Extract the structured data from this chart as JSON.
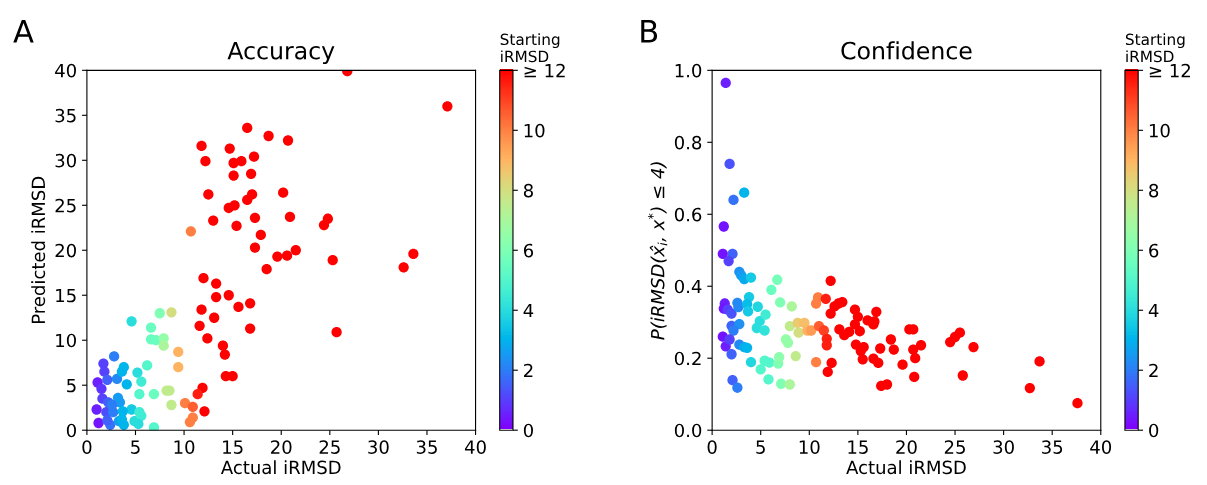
{
  "chart_data": [
    {
      "type": "scatter",
      "title": "Accuracy",
      "xlabel": "Actual iRMSD",
      "ylabel": "Predicted iRMSD",
      "clabel": "Starting\niRMSD",
      "annotations": [
        "A"
      ],
      "marker": "circle",
      "xlim": [
        0,
        40
      ],
      "xticks": [
        0,
        5,
        10,
        15,
        20,
        25,
        30,
        35,
        40
      ],
      "ylim": [
        0,
        40
      ],
      "yticks": [
        0,
        5,
        10,
        15,
        20,
        25,
        30,
        35,
        40
      ],
      "clim": [
        0,
        12
      ],
      "cticks": [
        0,
        2,
        4,
        6,
        8,
        10,
        {
          "value": 12,
          "label": "≥ 12"
        }
      ],
      "x": [
        16.5,
        18.7,
        20.7,
        11.8,
        14.7,
        12.2,
        15.1,
        15.9,
        17.2,
        15.1,
        16.9,
        12.5,
        17.0,
        20.2,
        16.5,
        14.6,
        15.2,
        13.0,
        15.4,
        17.3,
        20.9,
        17.9,
        17.3,
        18.5,
        19.6,
        20.6,
        21.5,
        26.8,
        37.1,
        24.8,
        24.4,
        25.3,
        33.6,
        32.6,
        25.7,
        10.7,
        12.0,
        13.3,
        13.3,
        14.6,
        15.6,
        16.8,
        11.8,
        13.1,
        11.6,
        16.8,
        12.4,
        14.0,
        14.2,
        14.3,
        15.0,
        11.9,
        11.4,
        12.1,
        10.1,
        10.9,
        10.9,
        10.6,
        7.5,
        8.7,
        4.6,
        6.6,
        6.6,
        7.1,
        7.9,
        7.9,
        9.4,
        9.4,
        6.2,
        5.2,
        5.6,
        5.4,
        6.9,
        8.2,
        8.5,
        8.7,
        6.9,
        4.6,
        4.9,
        5.4,
        5.6,
        5.3,
        2.8,
        1.7,
        1.8,
        2.1,
        1.1,
        1.5,
        3.1,
        3.8,
        3.6,
        4.1,
        3.2,
        3.4,
        1.6,
        2.2,
        1.0,
        2.0,
        2.7,
        3.7,
        1.2,
        2.4,
        3.3,
        3.8,
        3.6,
        2.1,
        2.6
      ],
      "values": [
        33.6,
        32.7,
        32.2,
        31.6,
        31.3,
        29.9,
        29.7,
        29.9,
        30.4,
        28.3,
        28.5,
        26.2,
        26.2,
        26.4,
        25.6,
        24.7,
        25.0,
        23.3,
        22.7,
        23.6,
        23.7,
        21.7,
        20.3,
        17.9,
        19.3,
        19.4,
        20.0,
        39.9,
        36.0,
        23.5,
        22.8,
        18.9,
        19.6,
        18.1,
        10.9,
        22.1,
        16.9,
        16.3,
        14.8,
        15.0,
        13.7,
        14.1,
        13.4,
        12.5,
        11.6,
        11.3,
        10.2,
        9.4,
        8.4,
        6.0,
        6.0,
        4.7,
        4.0,
        2.1,
        3.0,
        2.6,
        1.4,
        0.9,
        13.0,
        13.1,
        12.1,
        11.4,
        10.1,
        10.0,
        10.2,
        9.4,
        8.7,
        7.0,
        7.2,
        6.4,
        5.4,
        4.0,
        4.0,
        4.4,
        4.4,
        2.8,
        0.3,
        2.3,
        1.0,
        2.0,
        1.6,
        0.7,
        8.2,
        7.4,
        6.5,
        5.6,
        5.3,
        4.6,
        5.7,
        7.0,
        6.5,
        5.1,
        3.6,
        3.1,
        3.5,
        3.1,
        2.3,
        2.0,
        2.0,
        2.1,
        0.8,
        0.6,
        1.0,
        0.6,
        1.2,
        1.1,
        2.8
      ],
      "cvalues": [
        12,
        12,
        12,
        12,
        12,
        12,
        12,
        12,
        12,
        12,
        12,
        12,
        12,
        12,
        12,
        12,
        12,
        12,
        12,
        12,
        12,
        12,
        12,
        12,
        12,
        12,
        12,
        12,
        12,
        12,
        12,
        12,
        12,
        12,
        12,
        10,
        12,
        12,
        12,
        12,
        12,
        12,
        12,
        12,
        12,
        12,
        12,
        12,
        12,
        12,
        12,
        12,
        11.5,
        12,
        10,
        10.5,
        10,
        10,
        6,
        8,
        4,
        5.5,
        5.5,
        5.5,
        6.5,
        7,
        9,
        9,
        5,
        4,
        4.5,
        5,
        5.5,
        7.5,
        7.5,
        7.5,
        5,
        3.5,
        4,
        4.5,
        4.5,
        4,
        2,
        1,
        1,
        1.5,
        0.5,
        0.8,
        2.2,
        3,
        3,
        3,
        2.5,
        2.5,
        1,
        1.5,
        0.5,
        1.2,
        2,
        3,
        0.3,
        1.8,
        2.5,
        3,
        3,
        1.5,
        2
      ]
    },
    {
      "type": "scatter",
      "title": "Confidence",
      "xlabel": "Actual iRMSD",
      "ylabel": "P(iRMSD(x̂$_{i}$, x$^{*}$) ≤ 4)",
      "clabel": "Starting\niRMSD",
      "annotations": [
        "B"
      ],
      "marker": "circle",
      "xlim": [
        0,
        40
      ],
      "xticks": [
        0,
        5,
        10,
        15,
        20,
        25,
        30,
        35,
        40
      ],
      "ylim": [
        0,
        1
      ],
      "yticks": [
        {
          "value": 0,
          "label": "0.0"
        },
        {
          "value": 0.2,
          "label": "0.2"
        },
        {
          "value": 0.4,
          "label": "0.4"
        },
        {
          "value": 0.6,
          "label": "0.6"
        },
        {
          "value": 0.8,
          "label": "0.8"
        },
        {
          "value": 1,
          "label": "1.0"
        }
      ],
      "clim": [
        0,
        12
      ],
      "cticks": [
        0,
        2,
        4,
        6,
        8,
        10,
        {
          "value": 12,
          "label": "≥ 12"
        }
      ],
      "x": [
        1.4,
        1.8,
        2.2,
        3.3,
        1.2,
        1.1,
        2.1,
        1.7,
        2.8,
        3.0,
        3.3,
        4.0,
        1.3,
        1.2,
        1.6,
        2.0,
        2.6,
        2.7,
        3.8,
        3.6,
        3.7,
        4.7,
        2.0,
        2.8,
        1.1,
        2.2,
        1.4,
        1.8,
        2.0,
        2.8,
        3.3,
        3.6,
        4.0,
        2.1,
        2.6,
        4.9,
        4.6,
        5.4,
        5.5,
        5.0,
        5.4,
        5.9,
        5.8,
        6.1,
        6.7,
        7.0,
        6.8,
        6.9,
        7.1,
        8.0,
        8.2,
        8.0,
        7.6,
        7.8,
        8.6,
        8.8,
        8.9,
        9.5,
        9.8,
        10.2,
        10.7,
        10.9,
        11.0,
        11.5,
        10.7,
        11.8,
        11.8,
        11.9,
        12.3,
        11.7,
        12.2,
        12.2,
        12.6,
        13.0,
        13.4,
        13.1,
        13.6,
        14.1,
        14.7,
        15.0,
        14.7,
        15.2,
        14.8,
        15.3,
        15.6,
        15.5,
        16.0,
        16.6,
        16.9,
        16.7,
        16.6,
        17.1,
        17.3,
        17.4,
        18.0,
        18.4,
        18.7,
        19.6,
        20.3,
        20.7,
        20.7,
        20.9,
        21.5,
        20.8,
        24.5,
        25.0,
        25.5,
        25.8,
        26.9,
        32.7,
        33.7,
        37.6
      ],
      "values": [
        0.965,
        0.74,
        0.64,
        0.66,
        0.566,
        0.49,
        0.49,
        0.47,
        0.44,
        0.43,
        0.42,
        0.424,
        0.352,
        0.338,
        0.335,
        0.324,
        0.354,
        0.342,
        0.37,
        0.35,
        0.33,
        0.343,
        0.29,
        0.295,
        0.26,
        0.277,
        0.233,
        0.252,
        0.211,
        0.238,
        0.231,
        0.229,
        0.189,
        0.139,
        0.118,
        0.303,
        0.284,
        0.277,
        0.321,
        0.169,
        0.193,
        0.188,
        0.141,
        0.39,
        0.418,
        0.355,
        0.185,
        0.203,
        0.129,
        0.127,
        0.344,
        0.289,
        0.252,
        0.243,
        0.206,
        0.298,
        0.271,
        0.298,
        0.277,
        0.277,
        0.352,
        0.369,
        0.289,
        0.277,
        0.189,
        0.254,
        0.236,
        0.162,
        0.187,
        0.365,
        0.415,
        0.324,
        0.344,
        0.352,
        0.356,
        0.28,
        0.264,
        0.273,
        0.335,
        0.315,
        0.294,
        0.275,
        0.238,
        0.22,
        0.231,
        0.197,
        0.305,
        0.294,
        0.329,
        0.302,
        0.199,
        0.187,
        0.227,
        0.123,
        0.127,
        0.252,
        0.224,
        0.182,
        0.28,
        0.28,
        0.224,
        0.2,
        0.236,
        0.148,
        0.245,
        0.259,
        0.271,
        0.152,
        0.231,
        0.117,
        0.191,
        0.075
      ],
      "cvalues": [
        0.5,
        1.3,
        1.8,
        3,
        0.3,
        0.3,
        1.5,
        1,
        2.3,
        2.5,
        2.8,
        3.5,
        0.5,
        0.3,
        1,
        1.3,
        2.2,
        2.2,
        3.5,
        3.2,
        3.5,
        3.8,
        1.5,
        2.3,
        0.3,
        2,
        0.5,
        1,
        1.5,
        2.2,
        2.8,
        3,
        3.8,
        1.5,
        2,
        4,
        4,
        4.2,
        4.5,
        5,
        5,
        5,
        5,
        5.5,
        5.8,
        6,
        6,
        6.3,
        6,
        7,
        7,
        7.5,
        6.5,
        6.5,
        7.5,
        8.5,
        8,
        8.8,
        9,
        9.5,
        10,
        10,
        10.5,
        11,
        10,
        11.5,
        11.5,
        12,
        12,
        11.5,
        12,
        12,
        12,
        12,
        12,
        12,
        12,
        12,
        12,
        12,
        12,
        12,
        12,
        12,
        12,
        12,
        12,
        12,
        12,
        12,
        12,
        12,
        12,
        12,
        12,
        12,
        12,
        12,
        12,
        12,
        12,
        12,
        12,
        12,
        12,
        12,
        12,
        12,
        12,
        12,
        12,
        12
      ]
    }
  ]
}
